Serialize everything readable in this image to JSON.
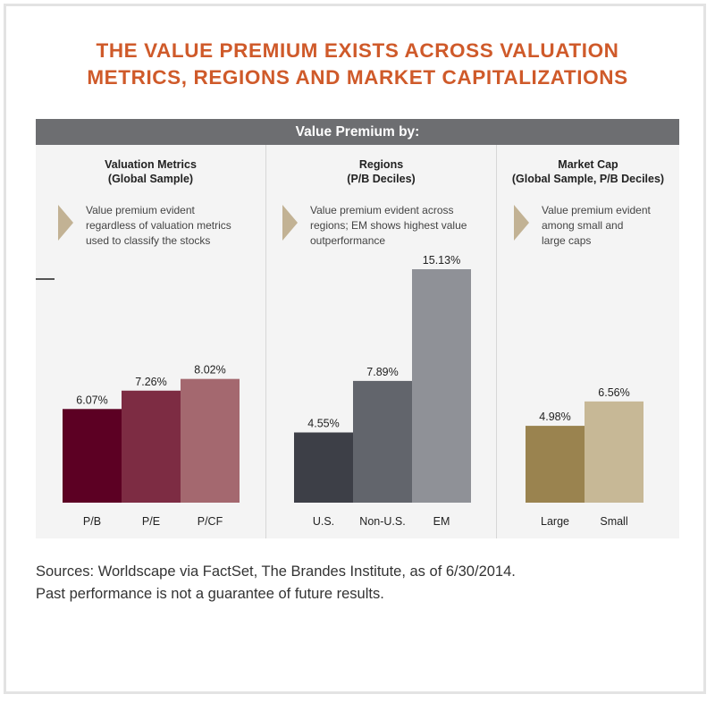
{
  "title_lines": [
    "THE VALUE PREMIUM EXISTS ACROSS VALUATION",
    "METRICS, REGIONS AND MARKET CAPITALIZATIONS"
  ],
  "header": "Value Premium by:",
  "panels": [
    {
      "title": [
        "Valuation Metrics",
        "(Global Sample)"
      ],
      "description": [
        "Value premium evident",
        "regardless of valuation metrics",
        "used to classify the stocks"
      ]
    },
    {
      "title": [
        "Regions",
        "(P/B Deciles)"
      ],
      "description": [
        "Value premium evident across",
        "regions; EM shows highest value",
        "outperformance"
      ]
    },
    {
      "title": [
        "Market Cap",
        "(Global Sample, P/B Deciles)"
      ],
      "description": [
        "Value premium evident",
        "among small and",
        "large caps"
      ]
    }
  ],
  "colors": {
    "title": "#cf5a2a",
    "header_bg": "#6d6e71",
    "arrow": "#c2b294",
    "panel_bg": "#f4f4f4"
  },
  "chart_data": [
    {
      "type": "bar",
      "categories": [
        "P/B",
        "P/E",
        "P/CF"
      ],
      "values": [
        6.07,
        7.26,
        8.02
      ],
      "labels": [
        "6.07%",
        "7.26%",
        "8.02%"
      ],
      "colors": [
        "#5c0023",
        "#7d2c43",
        "#a4686f"
      ],
      "ylim": [
        0,
        16.5
      ]
    },
    {
      "type": "bar",
      "categories": [
        "U.S.",
        "Non-U.S.",
        "EM"
      ],
      "values": [
        4.55,
        7.89,
        15.13
      ],
      "labels": [
        "4.55%",
        "7.89%",
        "15.13%"
      ],
      "colors": [
        "#3d3f47",
        "#62656c",
        "#8f9197"
      ],
      "ylim": [
        0,
        16.5
      ]
    },
    {
      "type": "bar",
      "categories": [
        "Large",
        "Small"
      ],
      "values": [
        4.98,
        6.56
      ],
      "labels": [
        "4.98%",
        "6.56%"
      ],
      "colors": [
        "#9a834f",
        "#c7b896"
      ],
      "ylim": [
        0,
        16.5
      ]
    }
  ],
  "sources": [
    "Sources: Worldscape via FactSet, The Brandes Institute, as of 6/30/2014.",
    "Past performance is not a guarantee of future results."
  ]
}
